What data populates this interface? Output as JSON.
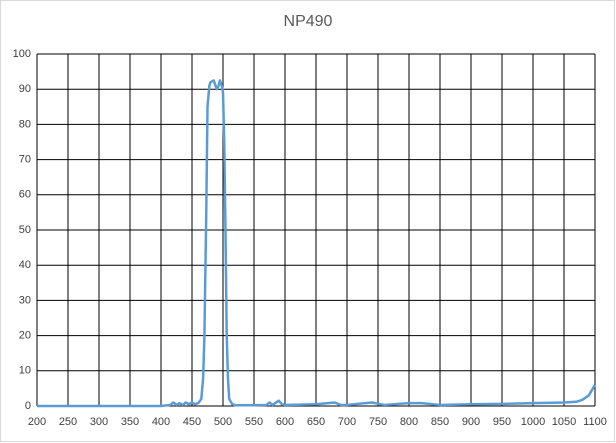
{
  "chart_data": {
    "type": "line",
    "title": "NP490",
    "x": [
      200,
      250,
      300,
      350,
      400,
      415,
      420,
      425,
      430,
      435,
      440,
      445,
      450,
      455,
      460,
      465,
      468,
      470,
      473,
      475,
      478,
      480,
      485,
      488,
      490,
      493,
      495,
      498,
      500,
      502,
      504,
      506,
      508,
      510,
      515,
      520,
      550,
      570,
      575,
      580,
      590,
      595,
      600,
      650,
      680,
      690,
      700,
      740,
      760,
      800,
      820,
      850,
      900,
      950,
      1000,
      1050,
      1070,
      1080,
      1090,
      1100
    ],
    "values": [
      0,
      0,
      0,
      0,
      0,
      0.3,
      1,
      0.3,
      0.8,
      0.3,
      1,
      0.5,
      1,
      0.5,
      0.8,
      2,
      8,
      20,
      55,
      85,
      91,
      92,
      92.5,
      91,
      90,
      91,
      92.5,
      91,
      89,
      75,
      50,
      20,
      8,
      2,
      0.5,
      0.2,
      0.2,
      0.3,
      1,
      0.3,
      1.5,
      0.5,
      0.3,
      0.5,
      1,
      0.3,
      0.3,
      1,
      0.3,
      0.8,
      0.8,
      0.3,
      0.5,
      0.6,
      0.8,
      1,
      1.2,
      1.8,
      3,
      6
    ],
    "color": "#5b9bd5",
    "xlim": [
      200,
      1100
    ],
    "xticks": [
      200,
      250,
      300,
      350,
      400,
      450,
      500,
      550,
      600,
      650,
      700,
      750,
      800,
      850,
      900,
      950,
      1000,
      1050,
      1100
    ],
    "ylim": [
      0,
      100
    ],
    "yticks": [
      0,
      10,
      20,
      30,
      40,
      50,
      60,
      70,
      80,
      90,
      100
    ],
    "grid": true
  }
}
